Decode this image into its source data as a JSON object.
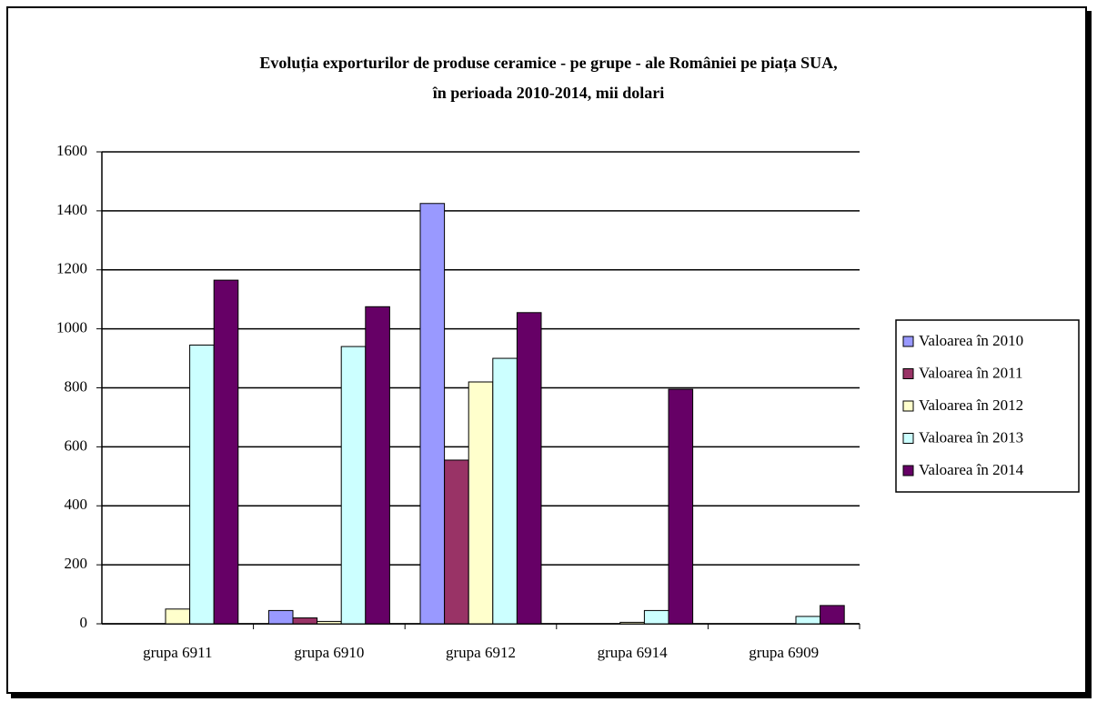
{
  "chart_data": {
    "type": "bar",
    "title": [
      "Evoluția exporturilor de produse ceramice - pe grupe - ale României pe piața SUA,",
      "în perioada 2010-2014, mii dolari"
    ],
    "categories": [
      "grupa 6911",
      "grupa 6910",
      "grupa 6912",
      "grupa 6914",
      "grupa 6909"
    ],
    "series": [
      {
        "name": "Valoarea în 2010",
        "color": "#9999ff",
        "values": [
          0,
          45,
          1425,
          0,
          0
        ]
      },
      {
        "name": "Valoarea în 2011",
        "color": "#993366",
        "values": [
          0,
          20,
          555,
          0,
          0
        ]
      },
      {
        "name": "Valoarea în 2012",
        "color": "#ffffcc",
        "values": [
          50,
          8,
          820,
          5,
          0
        ]
      },
      {
        "name": "Valoarea în 2013",
        "color": "#ccffff",
        "values": [
          945,
          940,
          900,
          45,
          25
        ]
      },
      {
        "name": "Valoarea în 2014",
        "color": "#660066",
        "values": [
          1165,
          1075,
          1055,
          795,
          62
        ]
      }
    ],
    "ylim": [
      0,
      1600
    ],
    "yticks": [
      0,
      200,
      400,
      600,
      800,
      1000,
      1200,
      1400,
      1600
    ],
    "grid": true,
    "legend": "right"
  }
}
